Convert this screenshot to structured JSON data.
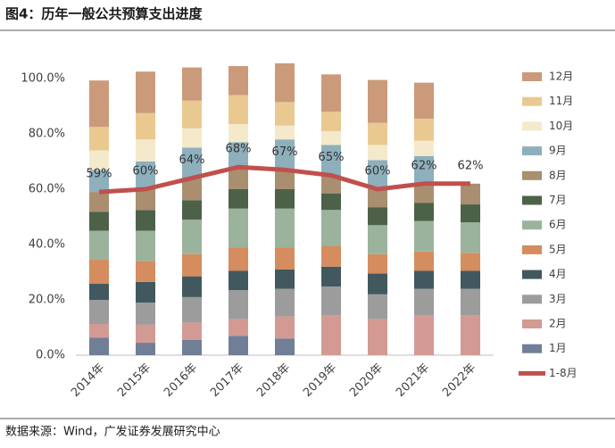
{
  "chart_data": {
    "type": "stacked_bar_line",
    "title": "图4：历年一般公共预算支出进度",
    "source": "数据来源：Wind，广发证券发展研究中心",
    "categories": [
      "2014年",
      "2015年",
      "2016年",
      "2017年",
      "2018年",
      "2019年",
      "2020年",
      "2021年",
      "2022年"
    ],
    "ylim": [
      0,
      110
    ],
    "yticks": [
      {
        "value": 0,
        "label": "0.0%"
      },
      {
        "value": 20,
        "label": "20.0%"
      },
      {
        "value": 40,
        "label": "40.0%"
      },
      {
        "value": 60,
        "label": "60.0%"
      },
      {
        "value": 80,
        "label": "80.0%"
      },
      {
        "value": 100,
        "label": "100.0%"
      }
    ],
    "grid": false,
    "legend": "right",
    "series": [
      {
        "name": "1月",
        "color": "#717e97",
        "values": [
          6.3,
          4.5,
          5.5,
          7.0,
          6.0,
          null,
          null,
          null,
          null
        ]
      },
      {
        "name": "2月",
        "color": "#d39a93",
        "values": [
          5.0,
          6.5,
          6.3,
          6.0,
          8.0,
          14.5,
          13.0,
          14.5,
          14.5
        ]
      },
      {
        "name": "3月",
        "color": "#9c9c9c",
        "values": [
          8.7,
          8.0,
          9.2,
          10.5,
          10.0,
          10.3,
          9.0,
          9.5,
          9.5
        ]
      },
      {
        "name": "4月",
        "color": "#41595e",
        "values": [
          5.8,
          7.5,
          7.5,
          7.0,
          7.0,
          7.2,
          7.5,
          6.5,
          6.5
        ]
      },
      {
        "name": "5月",
        "color": "#d58c5e",
        "values": [
          8.7,
          7.5,
          8.0,
          8.5,
          8.0,
          7.5,
          7.0,
          7.0,
          6.5
        ]
      },
      {
        "name": "6月",
        "color": "#9bb39d",
        "values": [
          10.5,
          11.0,
          12.5,
          14.0,
          14.0,
          13.0,
          10.5,
          11.0,
          11.0
        ]
      },
      {
        "name": "7月",
        "color": "#4d6149",
        "values": [
          6.8,
          7.5,
          7.0,
          7.0,
          7.0,
          6.0,
          6.5,
          6.5,
          6.5
        ]
      },
      {
        "name": "8月",
        "color": "#a98f6f",
        "values": [
          7.2,
          7.5,
          8.0,
          8.0,
          7.0,
          6.5,
          6.5,
          7.0,
          7.5
        ]
      },
      {
        "name": "9月",
        "color": "#8eafbc",
        "values": [
          8.0,
          10.0,
          11.0,
          9.0,
          11.0,
          11.0,
          10.5,
          10.0,
          null
        ]
      },
      {
        "name": "10月",
        "color": "#f4e9cb",
        "values": [
          7.0,
          8.0,
          7.0,
          6.5,
          5.0,
          5.0,
          5.5,
          5.5,
          null
        ]
      },
      {
        "name": "11月",
        "color": "#eac990",
        "values": [
          8.5,
          9.5,
          10.0,
          10.5,
          8.5,
          7.0,
          8.0,
          8.0,
          null
        ]
      },
      {
        "name": "12月",
        "color": "#cb9a7b",
        "values": [
          16.8,
          15.0,
          12.0,
          10.5,
          14.0,
          13.5,
          15.5,
          13.0,
          null
        ]
      },
      {
        "name": "1-8月",
        "type": "line",
        "color": "#c0504d",
        "values": [
          59,
          60,
          64,
          68,
          67,
          65,
          60,
          62,
          62
        ],
        "value_labels": [
          "59%",
          "60%",
          "64%",
          "68%",
          "67%",
          "65%",
          "60%",
          "62%",
          "62%"
        ]
      }
    ]
  }
}
